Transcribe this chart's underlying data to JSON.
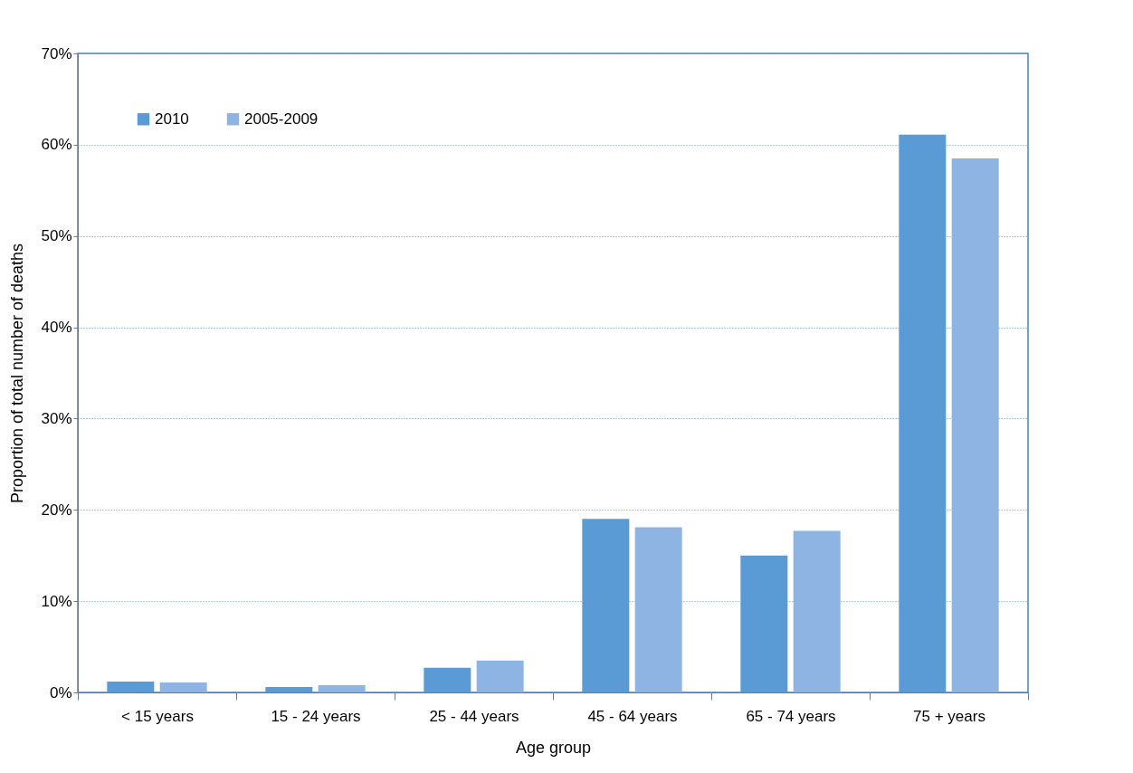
{
  "chart_data": {
    "type": "bar",
    "xlabel": "Age group",
    "ylabel": "Proportion of total number of deaths",
    "categories": [
      "< 15 years",
      "15 - 24 years",
      "25 - 44 years",
      "45 - 64 years",
      "65 - 74 years",
      "75 + years"
    ],
    "series": [
      {
        "name": "2010",
        "color": "#5b9bd5",
        "values": [
          1.2,
          0.6,
          2.7,
          19.0,
          15.0,
          61.1
        ]
      },
      {
        "name": "2005-2009",
        "color": "#8eb4e3",
        "values": [
          1.1,
          0.8,
          3.5,
          18.1,
          17.7,
          58.5
        ]
      }
    ],
    "ylim": [
      0,
      70
    ],
    "yticks": [
      {
        "value": 0,
        "label": "0%"
      },
      {
        "value": 10,
        "label": "10%"
      },
      {
        "value": 20,
        "label": "20%"
      },
      {
        "value": 30,
        "label": "30%"
      },
      {
        "value": 40,
        "label": "40%"
      },
      {
        "value": 50,
        "label": "50%"
      },
      {
        "value": 60,
        "label": "60%"
      },
      {
        "value": 70,
        "label": "70%"
      }
    ],
    "grid": "y",
    "legend": "top left"
  }
}
